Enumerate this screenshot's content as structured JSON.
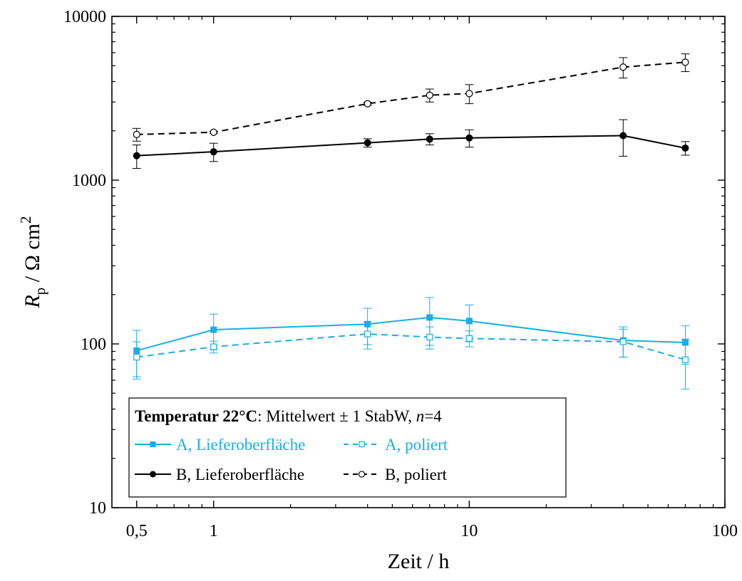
{
  "chart_data": {
    "type": "line",
    "xlabel": "Zeit / h",
    "ylabel_main": "R",
    "ylabel_sub": "p",
    "ylabel_rest": " / Ω cm",
    "ylabel_sup": "2",
    "xscale": "log",
    "yscale": "log",
    "xlim": [
      0.4,
      100
    ],
    "ylim": [
      10,
      10000
    ],
    "x_ticks": [
      0.5,
      1,
      10,
      100
    ],
    "x_tick_labels": [
      "0,5",
      "1",
      "10",
      "100"
    ],
    "y_ticks": [
      10,
      100,
      1000,
      10000
    ],
    "y_tick_labels": [
      "10",
      "100",
      "1000",
      "10000"
    ],
    "grid": false,
    "legend_position": "bottom-left",
    "legend_title_bold": "Temperatur 22°C",
    "legend_title_rest_1": ": Mittelwert ± 1 StabW, ",
    "legend_title_italic": "n",
    "legend_title_rest_2": "=4",
    "x": [
      0.5,
      1,
      4,
      7,
      10,
      40,
      70
    ],
    "series": [
      {
        "name": "A, Lieferoberfläche",
        "color": "#1aaee4",
        "dash": "solid",
        "marker": "filled-square",
        "values": [
          91,
          122,
          132,
          145,
          138,
          105,
          102
        ],
        "errors": [
          30,
          30,
          33,
          47,
          35,
          22,
          27
        ]
      },
      {
        "name": "A, poliert",
        "color": "#1aaee4",
        "dash": "dashed",
        "marker": "open-square",
        "values": [
          83,
          96,
          115,
          110,
          108,
          103,
          80
        ],
        "errors": [
          20,
          8,
          22,
          17,
          12,
          20,
          27
        ]
      },
      {
        "name": "B, Lieferoberfläche",
        "color": "#000000",
        "dash": "solid",
        "marker": "filled-circle",
        "values": [
          1410,
          1490,
          1690,
          1780,
          1810,
          1870,
          1570
        ],
        "errors": [
          230,
          190,
          100,
          140,
          220,
          470,
          150
        ]
      },
      {
        "name": "B, poliert",
        "color": "#000000",
        "dash": "dashed",
        "marker": "open-circle",
        "values": [
          1900,
          1960,
          2930,
          3300,
          3380,
          4900,
          5250
        ],
        "errors": [
          170,
          30,
          60,
          300,
          450,
          700,
          650
        ]
      }
    ]
  }
}
